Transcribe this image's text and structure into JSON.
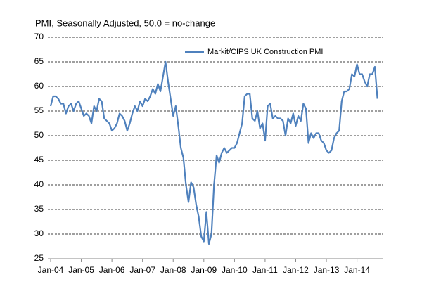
{
  "chart_data": {
    "type": "line",
    "title": "PMI, Seasonally Adjusted, 50.0 = no-change",
    "categories": [
      "Jan-04",
      null,
      null,
      null,
      null,
      null,
      null,
      null,
      null,
      null,
      null,
      null,
      "Jan-05",
      null,
      null,
      null,
      null,
      null,
      null,
      null,
      null,
      null,
      null,
      null,
      "Jan-06",
      null,
      null,
      null,
      null,
      null,
      null,
      null,
      null,
      null,
      null,
      null,
      "Jan-07",
      null,
      null,
      null,
      null,
      null,
      null,
      null,
      null,
      null,
      null,
      null,
      "Jan-08",
      null,
      null,
      null,
      null,
      null,
      null,
      null,
      null,
      null,
      null,
      null,
      "Jan-09",
      null,
      null,
      null,
      null,
      null,
      null,
      null,
      null,
      null,
      null,
      null,
      "Jan-10",
      null,
      null,
      null,
      null,
      null,
      null,
      null,
      null,
      null,
      null,
      null,
      "Jan-11",
      null,
      null,
      null,
      null,
      null,
      null,
      null,
      null,
      null,
      null,
      null,
      "Jan-12",
      null,
      null,
      null,
      null,
      null,
      null,
      null,
      null,
      null,
      null,
      null,
      "Jan-13",
      null,
      null,
      null,
      null,
      null,
      null,
      null,
      null,
      null,
      null,
      null,
      "Jan-14",
      null,
      null,
      null,
      null,
      null,
      null,
      null,
      null
    ],
    "series": [
      {
        "name": "Markit/CIPS UK Construction PMI",
        "color": "#4f81bd",
        "values": [
          56,
          58,
          58,
          57.5,
          56.5,
          56.5,
          54.5,
          56,
          56.5,
          55,
          56.5,
          57,
          55.5,
          54,
          54.5,
          54,
          52.5,
          56,
          55,
          57.5,
          57,
          53.5,
          53,
          52.5,
          51,
          51.5,
          52.5,
          54.5,
          54,
          53,
          51,
          52.5,
          54.5,
          56,
          55,
          57,
          56,
          57.5,
          57,
          58,
          59.5,
          58.5,
          60.5,
          59,
          62,
          65,
          61,
          57.5,
          54,
          56,
          52,
          47.5,
          45.5,
          40,
          36.5,
          40.5,
          39.5,
          36,
          33.5,
          29.5,
          28.5,
          34.5,
          28,
          30,
          40,
          46,
          44.5,
          46.5,
          47.5,
          46.5,
          47,
          47.5,
          47.5,
          48.5,
          50.5,
          52.5,
          58,
          58.5,
          58.5,
          53.5,
          53,
          55,
          51.5,
          52.5,
          49,
          56,
          56.5,
          53.5,
          54,
          53.5,
          53.5,
          53,
          50,
          53.5,
          52.5,
          54.5,
          52,
          54,
          53,
          56.5,
          55.5,
          48.5,
          50.5,
          49.5,
          50.5,
          50.5,
          49,
          48.5,
          47,
          46.5,
          47,
          49.5,
          50.5,
          51,
          57,
          59,
          59,
          59.5,
          62.5,
          62,
          64.5,
          62.5,
          62.5,
          61,
          60,
          62.5,
          62.5,
          64,
          57.5
        ]
      }
    ],
    "ylim": [
      25,
      70
    ],
    "yticks": [
      25,
      30,
      35,
      40,
      45,
      50,
      55,
      60,
      65,
      70
    ],
    "grid": true
  }
}
